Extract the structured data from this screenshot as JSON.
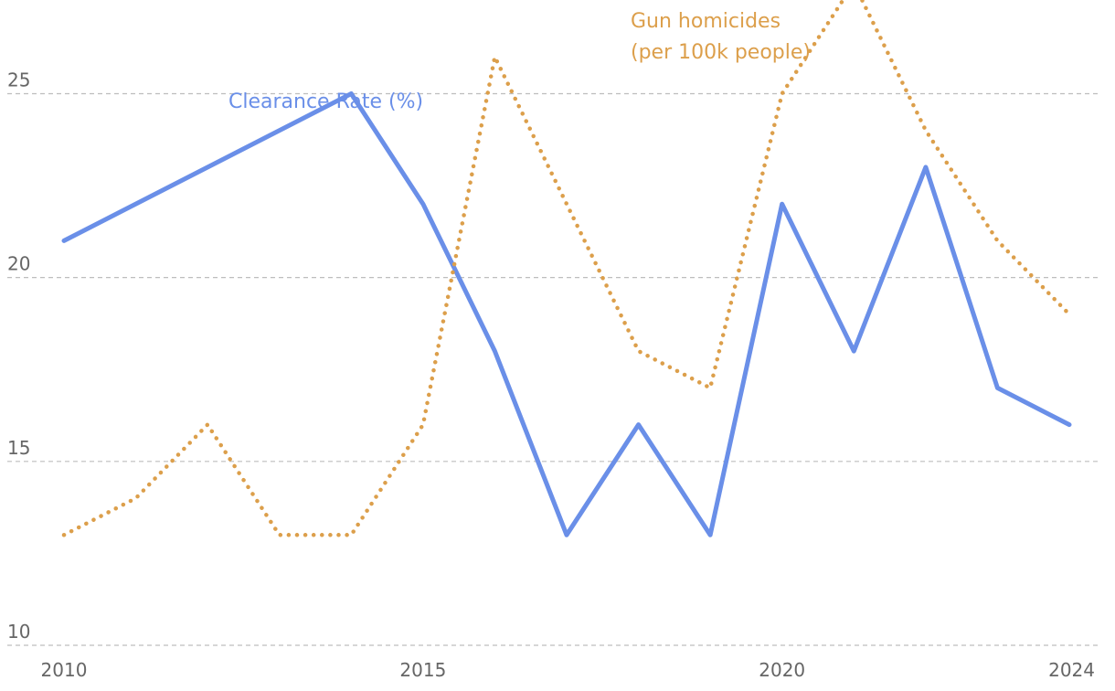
{
  "chart_data": {
    "type": "line",
    "title": "",
    "xlabel": "",
    "ylabel": "",
    "xlim": [
      2010,
      2024
    ],
    "ylim": [
      10,
      27
    ],
    "x": [
      2010,
      2011,
      2012,
      2013,
      2014,
      2015,
      2016,
      2017,
      2018,
      2019,
      2020,
      2021,
      2022,
      2023,
      2024
    ],
    "y_ticks": [
      10,
      15,
      20,
      25
    ],
    "y_tick_labels": [
      "10",
      "15",
      "20",
      "25"
    ],
    "x_ticks": [
      2010,
      2015,
      2020,
      2024
    ],
    "x_tick_labels": [
      "2010",
      "2015",
      "2020",
      "2024"
    ],
    "grid": "horizontal dashed",
    "legend": "inline labels",
    "series": [
      {
        "name": "Clearance Rate (%)",
        "label_lines": [
          "Clearance Rate (%)"
        ],
        "color": "#6a8fe8",
        "style": "solid",
        "values": [
          21,
          null,
          null,
          null,
          25,
          22,
          18,
          13,
          16,
          13,
          22,
          18,
          23,
          17,
          16
        ]
      },
      {
        "name": "Gun homicides (per 100k people)",
        "label_lines": [
          "Gun homicides",
          "(per 100k people)"
        ],
        "color": "#dc9f4b",
        "style": "dotted",
        "values": [
          13,
          14,
          16,
          13,
          13,
          16,
          26,
          22,
          18,
          17,
          25,
          28,
          24,
          21,
          19
        ]
      }
    ]
  }
}
